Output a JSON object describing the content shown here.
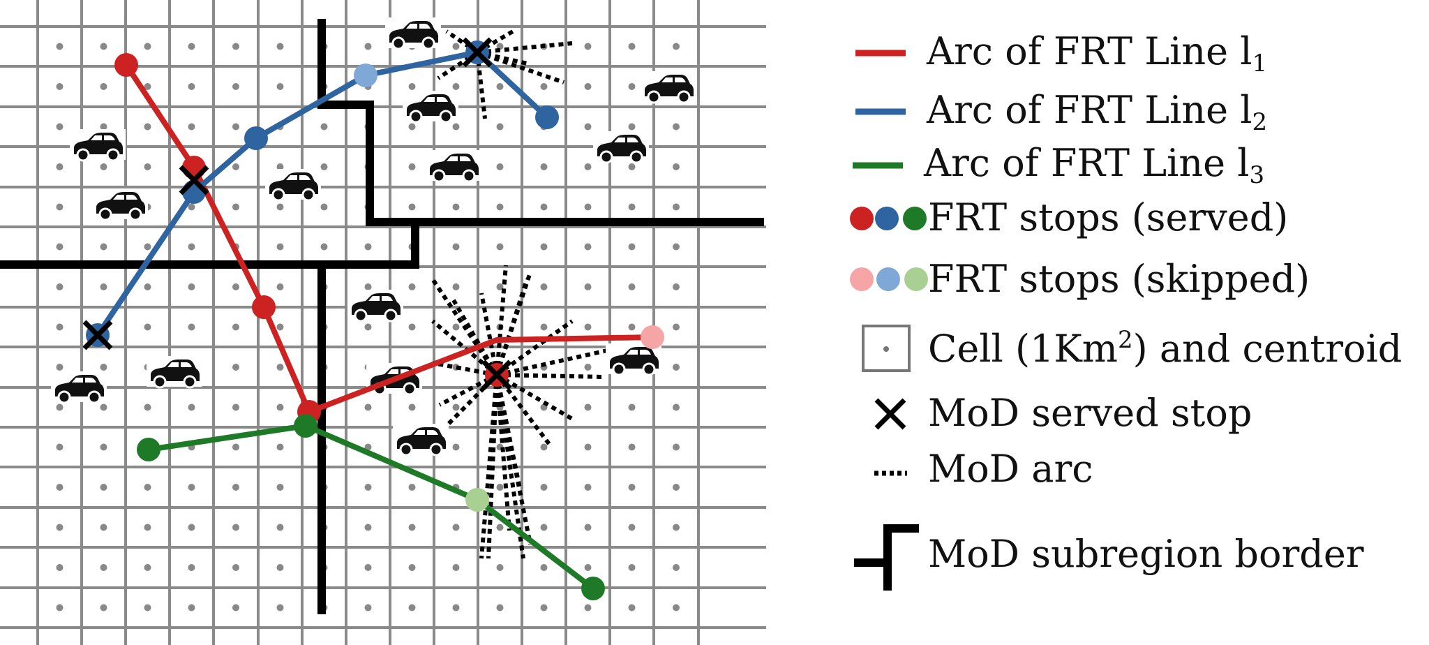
{
  "colors": {
    "line1": "#cc2222",
    "line2": "#2e64a0",
    "line3": "#1f7a28",
    "line1_skipped": "#f5a5a5",
    "line2_skipped": "#7fa8d6",
    "line3_skipped": "#a8d092",
    "grid": "#8a8a8a",
    "centroid": "#888888",
    "border": "#000000"
  },
  "legend": {
    "line1_label": "Arc of FRT Line l",
    "line1_sub": "1",
    "line2_label": "Arc of FRT Line l",
    "line2_sub": "2",
    "line3_label": "Arc of FRT Line l",
    "line3_sub": "3",
    "served_label": "FRT stops (served)",
    "skipped_label": "FRT stops (skipped)",
    "cell_label_pre": "Cell (1Km",
    "cell_label_sup": "2",
    "cell_label_post": ") and centroid",
    "mod_stop_label": "MoD served stop",
    "mod_arc_label": "MoD arc",
    "border_label": "MoD subregion border"
  },
  "icons": {
    "vehicle": "car-icon",
    "mod_stop": "x-mark-icon"
  }
}
